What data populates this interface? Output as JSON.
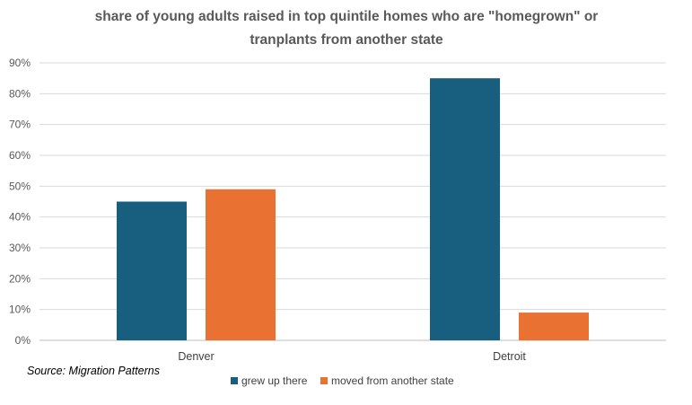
{
  "chart_data": {
    "type": "bar",
    "title_lines": [
      "share of young adults raised in top quintile homes who are \"homegrown\" or",
      "tranplants from another state"
    ],
    "categories": [
      "Denver",
      "Detroit"
    ],
    "series": [
      {
        "name": "grew up there",
        "color": "#175E7F",
        "values": [
          0.45,
          0.85
        ]
      },
      {
        "name": "moved from another state",
        "color": "#E97132",
        "values": [
          0.49,
          0.09
        ]
      }
    ],
    "ylim": [
      0,
      0.9
    ],
    "yticks": [
      "0%",
      "10%",
      "20%",
      "30%",
      "40%",
      "50%",
      "60%",
      "70%",
      "80%",
      "90%"
    ],
    "grid": true,
    "legend_position": "bottom"
  },
  "source_text": "Source: Migration Patterns"
}
